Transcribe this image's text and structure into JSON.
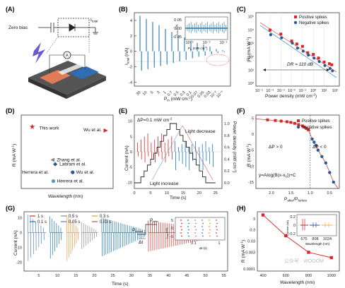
{
  "panels": {
    "A": {
      "label": "(A)",
      "zero_bias": "Zero bias",
      "i_total": "I",
      "i_total_sub": "total",
      "amp": "A"
    },
    "B": {
      "label": "(B)",
      "ylabel": "I",
      "ylabel_sub": "total",
      "ylabel_unit": " (nA)",
      "xlabel": "P",
      "xlabel_sub": "in",
      "xlabel_unit": " (mW cm",
      "xlabel_sup": "-2",
      "xlabel_end": ")",
      "inset_ylabel": "I",
      "inset_ylabel_sub": "total",
      "inset_ylabel_unit": " (nA)",
      "inset_xlabel": "P",
      "inset_xlabel_sub": "in",
      "inset_xlabel_unit": " (mW cm",
      "inset_xlabel_sup": "-2",
      "inset_xlabel_end": ")"
    },
    "C": {
      "label": "(C)",
      "ylabel": "|R| (mA W",
      "ylabel_sup": "-1",
      "ylabel_end": ")",
      "xlabel": "Power density (mW cm",
      "xlabel_sup": "-2",
      "xlabel_end": ")",
      "dr": "DR = 110 dB"
    },
    "D": {
      "label": "(D)",
      "ylabel": "R (mA W",
      "ylabel_sup": "-1",
      "ylabel_end": ")",
      "xlabel": "Wavelength (nm)"
    },
    "E": {
      "label": "(E)",
      "delta": "ΔP=0.1 mW cm",
      "delta_sup": "-2",
      "increase": "Light increase",
      "decrease": "Light decrease",
      "ylabel": "Current (nA)",
      "xlabel": "Time (s)",
      "ylabel2": "Power density (mW cm",
      "ylabel2_sup": "-2",
      "ylabel2_end": ")"
    },
    "F": {
      "label": "(F)",
      "ylabel": "R (mA W",
      "ylabel_sup": "-1",
      "ylabel_end": ")",
      "xlabel_a": "P",
      "xlabel_a_sub": "after",
      "xlabel_b": "/P",
      "xlabel_b_sub": "before",
      "dp_pos": "ΔP > 0",
      "dp_neg": "ΔP < 0",
      "formula": "y=Alog(B(x-x",
      "formula_sub": "0",
      "formula_end": "))+C"
    },
    "G": {
      "label": "(G)",
      "ylabel": "Current (nA)",
      "xlabel": "Time (s)",
      "p_before": "P",
      "p_before_sub": "before",
      "p_after": "P",
      "p_after_sub": "after",
      "dt": "Δt",
      "inset_ylabel": "I",
      "inset_ylabel_sub": "total",
      "inset_ylabel_unit": " (nA)",
      "inset_xlabel": "Δt (s)"
    },
    "H": {
      "label": "(H)",
      "ylabel": "R (mA W",
      "ylabel_sup": "-1",
      "ylabel_end": ")",
      "xlabel": "Wavelength (nm)",
      "inset_ylabel": "Current (nA)",
      "inset_xlabel": "Wavelength (nm)"
    }
  },
  "watermark": "公众号 · WOOOM",
  "colors": {
    "red": "#d62728",
    "blue": "#1f77b4",
    "navy": "#2b5797",
    "orange": "#e8963a",
    "grey": "#888888"
  },
  "chart_data": [
    {
      "panel": "B",
      "type": "bar",
      "categories": [
        "30",
        "10",
        "5",
        "3",
        "1",
        "0.7",
        "0.5",
        "0.3",
        "0.1",
        "0.07",
        "0.05",
        "0.03",
        "10⁻²",
        "10⁻³"
      ],
      "series": [
        {
          "values": [
            4.6,
            4.2,
            3.8,
            3.4,
            2.9,
            2.5,
            2.1,
            1.8,
            1.4,
            1.1,
            0.9,
            0.6,
            0.3,
            0.15
          ]
        },
        {
          "values": [
            -2.5,
            -2.3,
            -2.1,
            -1.9,
            -1.7,
            -1.5,
            -1.3,
            -1.1,
            -0.9,
            -0.7,
            -0.55,
            -0.4,
            -0.2,
            -0.1
          ]
        }
      ],
      "yticks": [
        "4",
        "2",
        "0",
        "-2",
        "-4"
      ],
      "ylim": [
        -4.5,
        5
      ],
      "inset_yticks": [
        "0.05",
        "0.00",
        "-0.05"
      ],
      "inset_xticks": [
        "10⁻³",
        "10⁻²",
        "10⁻¹"
      ]
    },
    {
      "panel": "C",
      "type": "scatter",
      "log_x": true,
      "log_y": true,
      "x_ticks": [
        "10⁻⁵",
        "10⁻⁴",
        "10⁻³",
        "10⁻²",
        "10⁻¹",
        "10⁰",
        "10¹",
        "10²"
      ],
      "y_ticks": [
        "10⁵",
        "10⁴",
        "10³",
        "10²",
        "10¹",
        "10⁰"
      ],
      "series": [
        {
          "name": "Positive spikes",
          "x": [
            0.0001,
            0.001,
            0.01,
            0.03,
            0.1,
            0.3,
            1,
            3,
            10,
            30,
            50
          ],
          "y": [
            10000,
            5000,
            1500,
            900,
            600,
            200,
            150,
            80,
            40,
            30,
            25
          ]
        },
        {
          "name": "Negative spikes",
          "x": [
            0.0001,
            0.001,
            0.01,
            0.03,
            0.1,
            0.3,
            1,
            3,
            10,
            30,
            50
          ],
          "y": [
            5000,
            3000,
            1200,
            500,
            300,
            150,
            90,
            50,
            25,
            15,
            10
          ]
        }
      ]
    },
    {
      "panel": "D",
      "type": "scatter",
      "points": [
        {
          "name": "This work",
          "x": 0.12,
          "y": 0.84
        },
        {
          "name": "Wu et al.",
          "x": 0.92,
          "y": 0.79
        },
        {
          "name": "Zhang et al.",
          "x": 0.34,
          "y": 0.39
        },
        {
          "name": "Labram et al.",
          "x": 0.37,
          "y": 0.33
        },
        {
          "name": "Herrera et al.",
          "x": 0.33,
          "y": 0.28
        },
        {
          "name": "Wu et al.",
          "x": 0.56,
          "y": 0.22
        },
        {
          "name": "Herrera et al.",
          "x": 0.35,
          "y": 0.1
        }
      ]
    },
    {
      "panel": "E",
      "type": "line",
      "yticks": [
        "10",
        "5",
        "0",
        "-5",
        "-10"
      ],
      "ylim": [
        -12,
        12
      ],
      "y2ticks": [
        "1.0",
        "0.8",
        "0.6",
        "0.4",
        "0.2",
        "0.0"
      ],
      "xticks": [
        "0",
        "5",
        "10",
        "15",
        "20",
        "25"
      ],
      "xlim": [
        0,
        27
      ],
      "power_steps_t": [
        0,
        2,
        3,
        4,
        5,
        6,
        7,
        8,
        9,
        10,
        11,
        12,
        13,
        14,
        15,
        16,
        17,
        18,
        19,
        20,
        21,
        22,
        23,
        24,
        25
      ],
      "power_steps_p": [
        0,
        0.1,
        0.2,
        0.3,
        0.4,
        0.5,
        0.6,
        0.7,
        0.8,
        0.9,
        1.0,
        1.0,
        0.9,
        0.8,
        0.7,
        0.6,
        0.5,
        0.4,
        0.3,
        0.2,
        0.1,
        0,
        0,
        0,
        0
      ]
    },
    {
      "panel": "F",
      "type": "scatter",
      "xticks": [
        "2.0",
        "1.5",
        "1.0",
        "0.5"
      ],
      "xlim": [
        2.4,
        0.25
      ],
      "yticks": [
        "5",
        "0",
        "-5",
        "-10",
        "-15"
      ],
      "ylim": [
        -17,
        6
      ],
      "series": [
        {
          "name": "Positive spikes",
          "x": [
            2.1,
            1.9,
            1.75,
            1.6,
            1.5,
            1.4,
            1.3,
            1.2,
            1.15,
            1.1,
            1.05
          ],
          "y": [
            4.5,
            4.3,
            4.1,
            3.9,
            3.7,
            3.4,
            3.0,
            2.6,
            2.2,
            1.8,
            1.4
          ]
        },
        {
          "name": "Negative spikes",
          "x": [
            0.95,
            0.9,
            0.85,
            0.8,
            0.7,
            0.6,
            0.5,
            0.4
          ],
          "y": [
            -1.5,
            -2.5,
            -3.5,
            -5,
            -7,
            -9,
            -12,
            -15
          ]
        }
      ]
    },
    {
      "panel": "G",
      "type": "line",
      "xticks": [
        "5",
        "10",
        "15",
        "20",
        "25",
        "30",
        "35",
        "40",
        "45",
        "50",
        "55"
      ],
      "xlim": [
        1,
        56
      ],
      "yticks": [
        "10",
        "0",
        "-10",
        "-20"
      ],
      "ylim": [
        -26,
        14
      ],
      "series": [
        {
          "name": "1 s",
          "color": "#d62728"
        },
        {
          "name": "0.1 s",
          "color": "#1f77b4"
        },
        {
          "name": "0.5 s",
          "color": "#888888"
        },
        {
          "name": "0.05 s",
          "color": "#4f81bd"
        },
        {
          "name": "0.3 s",
          "color": "#e8963a"
        },
        {
          "name": "0.03 s",
          "color": "#c0504d"
        }
      ],
      "inset_yticks": [
        "-5",
        "0",
        "5"
      ],
      "inset_xticks": [
        "0.1",
        "1"
      ]
    },
    {
      "panel": "H",
      "type": "line",
      "log_y": true,
      "x": [
        400,
        600,
        800,
        1000
      ],
      "y": [
        6.5,
        0.09,
        0.003,
        0.001
      ],
      "xticks": [
        "400",
        "600",
        "800",
        "1000"
      ],
      "yticks": [
        "3",
        "0.3",
        "0.03",
        "0.003",
        "0.0001"
      ],
      "inset_xticks": [
        "675",
        "808",
        "1024"
      ],
      "inset_yticks": [
        "0.2",
        "0",
        "-0.2"
      ]
    }
  ]
}
